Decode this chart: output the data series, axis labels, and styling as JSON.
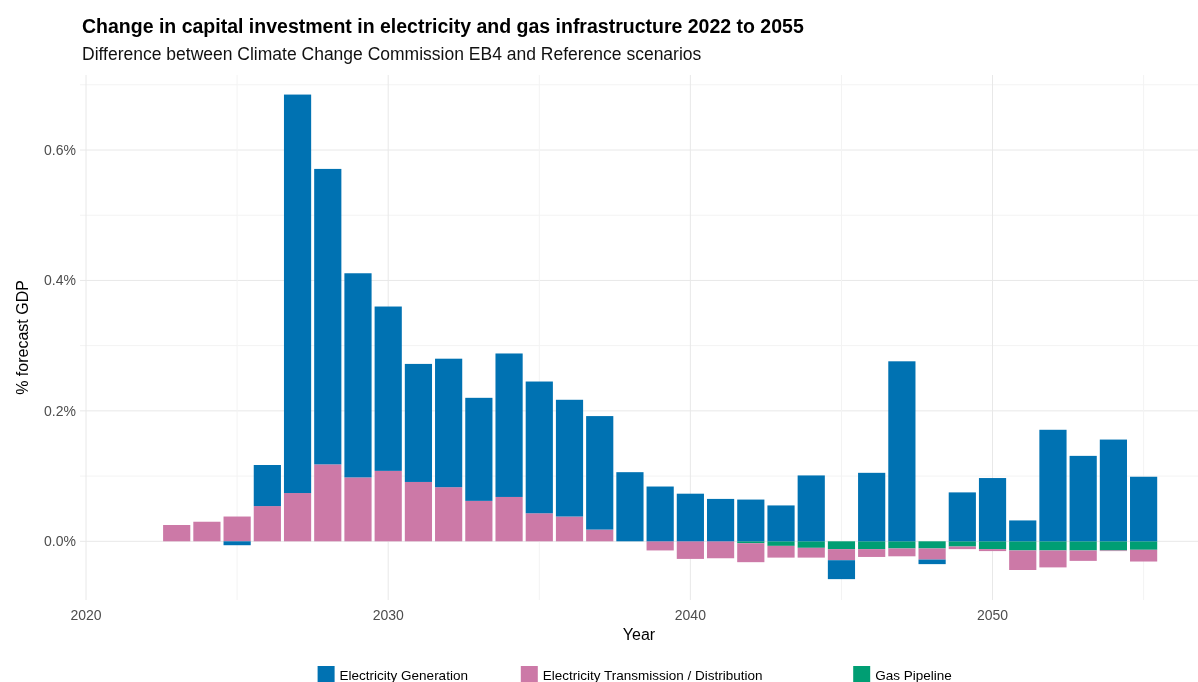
{
  "chart_data": {
    "type": "bar",
    "title": "Change in capital investment in electricity and gas infrastructure 2022 to 2055",
    "subtitle": "Difference between Climate Change Commission EB4 and Reference scenarios",
    "xlabel": "Year",
    "ylabel": "% forecast GDP",
    "stacked": true,
    "grid": true,
    "legend": "bottom",
    "x": [
      2023,
      2024,
      2025,
      2026,
      2027,
      2028,
      2029,
      2030,
      2031,
      2032,
      2033,
      2034,
      2035,
      2036,
      2037,
      2038,
      2039,
      2040,
      2041,
      2042,
      2043,
      2044,
      2045,
      2046,
      2047,
      2048,
      2049,
      2050,
      2051,
      2052,
      2053,
      2054,
      2055
    ],
    "xlim": [
      2019.8,
      2056.8
    ],
    "xticks": [
      2020,
      {
        "value": 2025,
        "label": null
      },
      2030,
      {
        "value": 2035,
        "label": null
      },
      2040,
      {
        "value": 2045,
        "label": null
      },
      2050,
      {
        "value": 2055,
        "label": null
      }
    ],
    "ylim": [
      -0.09,
      0.715
    ],
    "yticks": [
      {
        "value": 0,
        "label": "0.0%"
      },
      {
        "value": 0.1,
        "label": null
      },
      {
        "value": 0.2,
        "label": "0.2%"
      },
      {
        "value": 0.3,
        "label": null
      },
      {
        "value": 0.4,
        "label": "0.4%"
      },
      {
        "value": 0.5,
        "label": null
      },
      {
        "value": 0.6,
        "label": "0.6%"
      },
      {
        "value": 0.7,
        "label": null
      }
    ],
    "series": [
      {
        "name": "Gas Pipeline",
        "color": "#009e73",
        "values": [
          0,
          0,
          0,
          0,
          0,
          0,
          0,
          0,
          0,
          0,
          0,
          0,
          0,
          0,
          0,
          0,
          0,
          0,
          0,
          -0.003,
          -0.007,
          -0.01,
          -0.012,
          -0.012,
          -0.011,
          -0.011,
          -0.008,
          -0.012,
          -0.014,
          -0.014,
          -0.014,
          -0.014,
          -0.013
        ]
      },
      {
        "name": "Electricity Transmission / Distribution",
        "color": "#cc79a7",
        "values": [
          0.025,
          0.03,
          0.038,
          0.054,
          0.074,
          0.118,
          0.098,
          0.108,
          0.091,
          0.083,
          0.062,
          0.068,
          0.043,
          0.038,
          0.018,
          0,
          -0.014,
          -0.027,
          -0.026,
          -0.029,
          -0.018,
          -0.015,
          -0.017,
          -0.012,
          -0.012,
          -0.017,
          -0.004,
          -0.003,
          -0.03,
          -0.026,
          -0.016,
          -0.001,
          -0.018
        ]
      },
      {
        "name": "Electricity Generation",
        "color": "#0072b2",
        "values": [
          0,
          0,
          -0.006,
          0.063,
          0.611,
          0.453,
          0.313,
          0.252,
          0.181,
          0.197,
          0.158,
          0.22,
          0.202,
          0.179,
          0.174,
          0.106,
          0.084,
          0.073,
          0.065,
          0.064,
          0.055,
          0.101,
          -0.029,
          0.105,
          0.276,
          -0.007,
          0.075,
          0.097,
          0.032,
          0.171,
          0.131,
          0.156,
          0.099
        ]
      }
    ]
  }
}
